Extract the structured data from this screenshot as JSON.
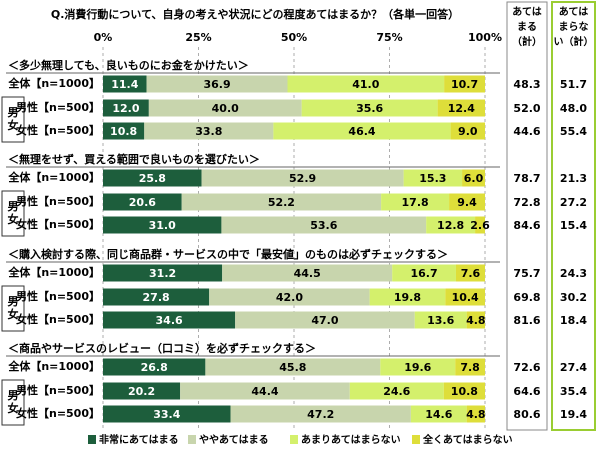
{
  "chart_data": {
    "type": "stacked-bar",
    "title": "Q.消費行動について、自身の考えや状況にどの程度あてはまるか？（各単一回答）",
    "xlim": [
      0,
      100
    ],
    "xticks": [
      {
        "value": 0,
        "label": "0%"
      },
      {
        "value": 25,
        "label": "25%"
      },
      {
        "value": 50,
        "label": "50%"
      },
      {
        "value": 75,
        "label": "75%"
      },
      {
        "value": 100,
        "label": "100%"
      }
    ],
    "grid": true,
    "series": [
      {
        "name": "非常にあてはまる",
        "color": "#1d5e3c",
        "label_color": "#ffffff"
      },
      {
        "name": "ややあてはまる",
        "color": "#c8d5ad",
        "label_color": "#000000"
      },
      {
        "name": "あまりあてはまらない",
        "color": "#d4f06c",
        "label_color": "#000000"
      },
      {
        "name": "全くあてはまらない",
        "color": "#dede3a",
        "label_color": "#000000"
      }
    ],
    "total_headers": [
      [
        "あては",
        "まる",
        "（計）"
      ],
      [
        "あては",
        "まらな",
        "い（計）"
      ]
    ],
    "gender_label": "男女",
    "groups": [
      {
        "title": "＜多少無理しても、良いものにお金をかけたい＞",
        "rows": [
          {
            "label": "全体【n=1000】",
            "values": [
              11.4,
              36.9,
              41.0,
              10.7
            ],
            "value_labels": [
              "11.4",
              "36.9",
              "41.0",
              "10.7"
            ],
            "totals": [
              48.3,
              51.7
            ],
            "total_labels": [
              "48.3",
              "51.7"
            ]
          },
          {
            "label": "男性【n=500】",
            "values": [
              12.0,
              40.0,
              35.6,
              12.4
            ],
            "value_labels": [
              "12.0",
              "40.0",
              "35.6",
              "12.4"
            ],
            "totals": [
              52.0,
              48.0
            ],
            "total_labels": [
              "52.0",
              "48.0"
            ]
          },
          {
            "label": "女性【n=500】",
            "values": [
              10.8,
              33.8,
              46.4,
              9.0
            ],
            "value_labels": [
              "10.8",
              "33.8",
              "46.4",
              "9.0"
            ],
            "totals": [
              44.6,
              55.4
            ],
            "total_labels": [
              "44.6",
              "55.4"
            ]
          }
        ]
      },
      {
        "title": "＜無理をせず、買える範囲で良いものを選びたい＞",
        "rows": [
          {
            "label": "全体【n=1000】",
            "values": [
              25.8,
              52.9,
              15.3,
              6.0
            ],
            "value_labels": [
              "25.8",
              "52.9",
              "15.3",
              "6.0"
            ],
            "totals": [
              78.7,
              21.3
            ],
            "total_labels": [
              "78.7",
              "21.3"
            ]
          },
          {
            "label": "男性【n=500】",
            "values": [
              20.6,
              52.2,
              17.8,
              9.4
            ],
            "value_labels": [
              "20.6",
              "52.2",
              "17.8",
              "9.4"
            ],
            "totals": [
              72.8,
              27.2
            ],
            "total_labels": [
              "72.8",
              "27.2"
            ]
          },
          {
            "label": "女性【n=500】",
            "values": [
              31.0,
              53.6,
              12.8,
              2.6
            ],
            "value_labels": [
              "31.0",
              "53.6",
              "12.8",
              "2.6"
            ],
            "totals": [
              84.6,
              15.4
            ],
            "total_labels": [
              "84.6",
              "15.4"
            ]
          }
        ]
      },
      {
        "title": "＜購入検討する際、同じ商品群・サービスの中で「最安値」のものは必ずチェックする＞",
        "rows": [
          {
            "label": "全体【n=1000】",
            "values": [
              31.2,
              44.5,
              16.7,
              7.6
            ],
            "value_labels": [
              "31.2",
              "44.5",
              "16.7",
              "7.6"
            ],
            "totals": [
              75.7,
              24.3
            ],
            "total_labels": [
              "75.7",
              "24.3"
            ]
          },
          {
            "label": "男性【n=500】",
            "values": [
              27.8,
              42.0,
              19.8,
              10.4
            ],
            "value_labels": [
              "27.8",
              "42.0",
              "19.8",
              "10.4"
            ],
            "totals": [
              69.8,
              30.2
            ],
            "total_labels": [
              "69.8",
              "30.2"
            ]
          },
          {
            "label": "女性【n=500】",
            "values": [
              34.6,
              47.0,
              13.6,
              4.8
            ],
            "value_labels": [
              "34.6",
              "47.0",
              "13.6",
              "4.8"
            ],
            "totals": [
              81.6,
              18.4
            ],
            "total_labels": [
              "81.6",
              "18.4"
            ]
          }
        ]
      },
      {
        "title": "＜商品やサービスのレビュー（口コミ）を必ずチェックする＞",
        "rows": [
          {
            "label": "全体【n=1000】",
            "values": [
              26.8,
              45.8,
              19.6,
              7.8
            ],
            "value_labels": [
              "26.8",
              "45.8",
              "19.6",
              "7.8"
            ],
            "totals": [
              72.6,
              27.4
            ],
            "total_labels": [
              "72.6",
              "27.4"
            ]
          },
          {
            "label": "男性【n=500】",
            "values": [
              20.2,
              44.4,
              24.6,
              10.8
            ],
            "value_labels": [
              "20.2",
              "44.4",
              "24.6",
              "10.8"
            ],
            "totals": [
              64.6,
              35.4
            ],
            "total_labels": [
              "64.6",
              "35.4"
            ]
          },
          {
            "label": "女性【n=500】",
            "values": [
              33.4,
              47.2,
              14.6,
              4.8
            ],
            "value_labels": [
              "33.4",
              "47.2",
              "14.6",
              "4.8"
            ],
            "totals": [
              80.6,
              19.4
            ],
            "total_labels": [
              "80.6",
              "19.4"
            ]
          }
        ]
      }
    ]
  }
}
